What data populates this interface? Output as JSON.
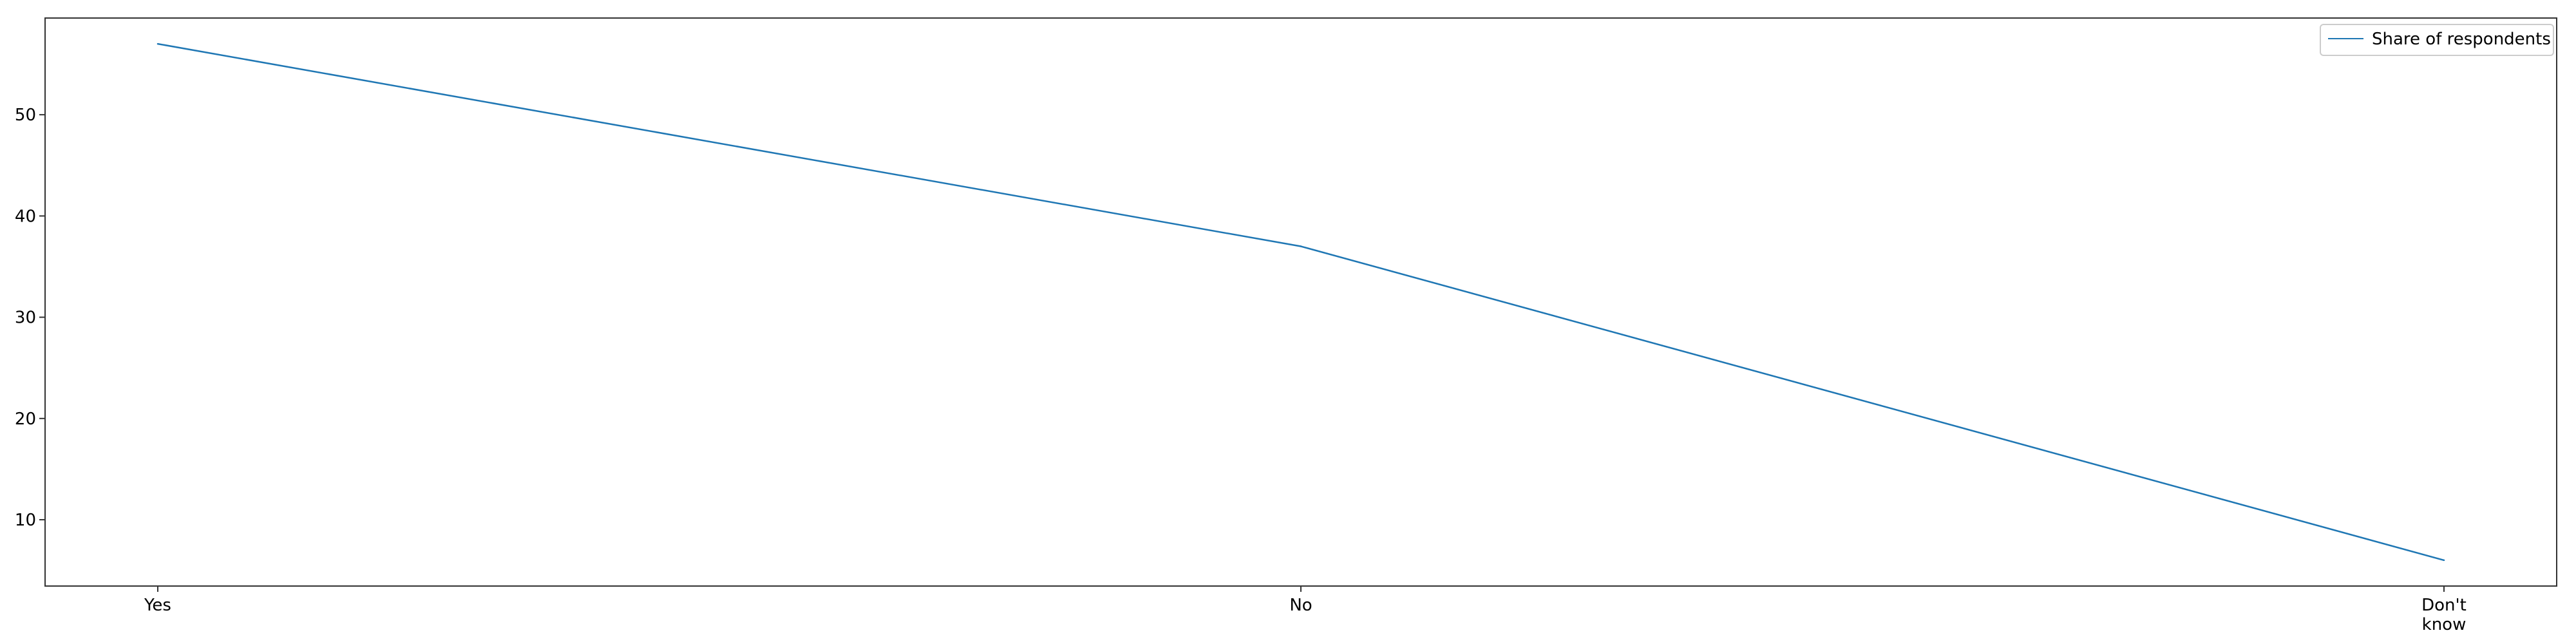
{
  "chart_data": {
    "type": "line",
    "categories": [
      "Yes",
      "No",
      "Don't know"
    ],
    "category_tick_lines": [
      [
        "Yes"
      ],
      [
        "No"
      ],
      [
        "Don't",
        "know"
      ]
    ],
    "series": [
      {
        "name": "Share of respondents",
        "values": [
          57,
          37,
          6
        ],
        "color": "#1f77b4"
      }
    ],
    "yticks": [
      10,
      20,
      30,
      40,
      50
    ],
    "ylim": [
      3.45,
      59.55
    ],
    "grid": false,
    "legend": {
      "position": "top-right",
      "entries": [
        "Share of respondents"
      ]
    }
  }
}
